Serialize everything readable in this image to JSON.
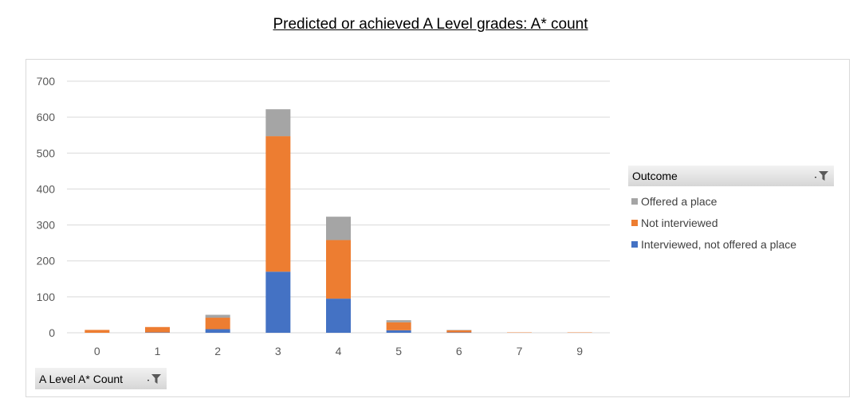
{
  "title": "Predicted or achieved A Level grades: A* count",
  "field_button_label": "A Level A* Count",
  "legend": {
    "title": "Outcome",
    "items": [
      {
        "label": "Offered a place",
        "color": "#a5a5a5"
      },
      {
        "label": "Not interviewed",
        "color": "#ed7d31"
      },
      {
        "label": "Interviewed, not offered a place",
        "color": "#4472c4"
      }
    ]
  },
  "icons": {
    "filter": "filter-funnel-icon"
  },
  "chart_data": {
    "type": "bar",
    "stacked": true,
    "categories": [
      "0",
      "1",
      "2",
      "3",
      "4",
      "5",
      "6",
      "7",
      "9"
    ],
    "series": [
      {
        "name": "Interviewed, not offered a place",
        "color": "#4472c4",
        "values": [
          0,
          1,
          10,
          170,
          95,
          7,
          1,
          0,
          0
        ]
      },
      {
        "name": "Not interviewed",
        "color": "#ed7d31",
        "values": [
          8,
          15,
          32,
          377,
          163,
          22,
          6,
          1,
          1
        ]
      },
      {
        "name": "Offered a place",
        "color": "#a5a5a5",
        "values": [
          0,
          0,
          8,
          75,
          65,
          6,
          1,
          0,
          0
        ]
      }
    ],
    "ylim": [
      0,
      700
    ],
    "yticks": [
      0,
      100,
      200,
      300,
      400,
      500,
      600,
      700
    ],
    "grid": true,
    "legend_position": "right"
  }
}
